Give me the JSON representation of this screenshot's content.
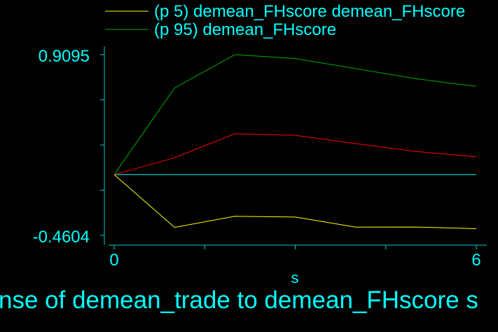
{
  "chart_data": {
    "type": "line",
    "title": "",
    "caption": "nse of demean_trade to demean_FHscore s",
    "xlabel": "s",
    "ylabel": "",
    "xlim": [
      0,
      6
    ],
    "ylim": [
      -0.4604,
      0.9095
    ],
    "xticks": [
      0,
      6
    ],
    "xtick_labels": [
      "0",
      "6"
    ],
    "yticks": [
      -0.4604,
      0.9095
    ],
    "ytick_labels": [
      "-0.4604",
      "0.9095"
    ],
    "x": [
      0,
      1,
      2,
      3,
      4,
      5,
      6
    ],
    "legend_position": "top",
    "zero_line_color": "#00ffff",
    "series": [
      {
        "name": "(p 5) demean_FHscore demean_FHscore",
        "color": "#ffff00",
        "values": [
          0,
          -0.4,
          -0.316,
          -0.322,
          -0.398,
          -0.397,
          -0.41
        ],
        "in_legend": true
      },
      {
        "name": "(p 95) demean_FHscore",
        "color": "#00aa00",
        "values": [
          0,
          0.657,
          0.9095,
          0.88,
          0.804,
          0.727,
          0.669
        ],
        "in_legend": true
      },
      {
        "name": "",
        "color": "#ff0000",
        "values": [
          0,
          0.128,
          0.31,
          0.298,
          0.235,
          0.175,
          0.135
        ],
        "in_legend": false
      }
    ]
  }
}
